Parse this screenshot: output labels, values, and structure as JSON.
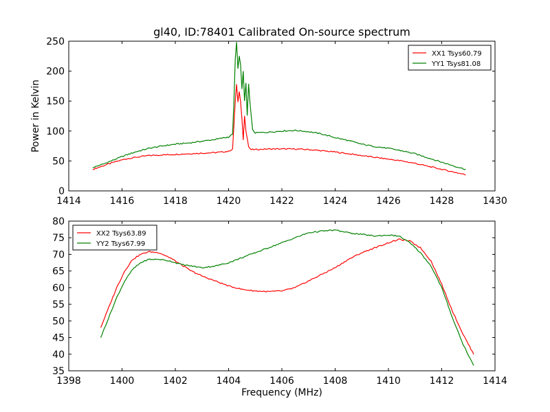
{
  "title": "gl40, ID:78401 Calibrated On-source spectrum",
  "chart_data": [
    {
      "type": "line",
      "title": "gl40, ID:78401 Calibrated On-source spectrum",
      "xlabel": "",
      "ylabel": "Power in Kelvin",
      "xlim": [
        1414,
        1430
      ],
      "ylim": [
        0,
        250
      ],
      "xticks": [
        "1414",
        "1416",
        "1418",
        "1420",
        "1422",
        "1424",
        "1426",
        "1428",
        "1430"
      ],
      "yticks": [
        "0",
        "50",
        "100",
        "150",
        "200",
        "250"
      ],
      "grid": false,
      "legend_position": "top-right",
      "series": [
        {
          "name": "XX1 Tsys60.79",
          "color": "#ff0000",
          "x": [
            1414.9,
            1415.3,
            1415.7,
            1416.1,
            1416.5,
            1417.0,
            1417.5,
            1418.0,
            1418.5,
            1419.0,
            1419.5,
            1420.0,
            1420.15,
            1420.25,
            1420.3,
            1420.35,
            1420.4,
            1420.45,
            1420.5,
            1420.55,
            1420.6,
            1420.65,
            1420.7,
            1420.75,
            1420.8,
            1420.85,
            1420.9,
            1421.0,
            1421.5,
            1422.0,
            1422.5,
            1423.0,
            1423.5,
            1424.0,
            1424.5,
            1425.0,
            1425.5,
            1426.0,
            1426.5,
            1427.0,
            1427.5,
            1428.0,
            1428.5,
            1428.9
          ],
          "y": [
            36,
            42,
            48,
            53,
            56,
            59,
            60,
            61,
            62,
            63,
            64,
            66,
            70,
            150,
            178,
            148,
            165,
            150,
            120,
            86,
            126,
            100,
            88,
            74,
            70,
            69,
            69,
            69,
            70,
            70,
            70,
            69,
            67,
            65,
            62,
            59,
            56,
            53,
            50,
            46,
            41,
            36,
            31,
            27
          ]
        },
        {
          "name": "YY1 Tsys81.08",
          "color": "#008000",
          "x": [
            1414.9,
            1415.3,
            1415.7,
            1416.1,
            1416.5,
            1417.0,
            1417.5,
            1418.0,
            1418.5,
            1419.0,
            1419.5,
            1420.0,
            1420.15,
            1420.2,
            1420.25,
            1420.3,
            1420.35,
            1420.4,
            1420.45,
            1420.5,
            1420.55,
            1420.6,
            1420.65,
            1420.7,
            1420.75,
            1420.8,
            1420.85,
            1420.9,
            1421.0,
            1421.5,
            1422.0,
            1422.5,
            1423.0,
            1423.5,
            1424.0,
            1424.5,
            1425.0,
            1425.5,
            1426.0,
            1426.5,
            1427.0,
            1427.5,
            1428.0,
            1428.5,
            1428.9
          ],
          "y": [
            39,
            45,
            52,
            59,
            65,
            71,
            75,
            78,
            80,
            83,
            86,
            90,
            95,
            150,
            220,
            248,
            205,
            225,
            210,
            170,
            200,
            150,
            180,
            125,
            178,
            150,
            125,
            102,
            97,
            98,
            100,
            101,
            99,
            95,
            89,
            84,
            78,
            74,
            71,
            67,
            62,
            55,
            48,
            41,
            36
          ]
        }
      ]
    },
    {
      "type": "line",
      "title": "",
      "xlabel": "Frequency (MHz)",
      "ylabel": "",
      "xlim": [
        1398,
        1414
      ],
      "ylim": [
        35,
        80
      ],
      "xticks": [
        "1398",
        "1400",
        "1402",
        "1404",
        "1406",
        "1408",
        "1410",
        "1412",
        "1414"
      ],
      "yticks": [
        "35",
        "40",
        "45",
        "50",
        "55",
        "60",
        "65",
        "70",
        "75",
        "80"
      ],
      "grid": false,
      "legend_position": "top-left",
      "series": [
        {
          "name": "XX2 Tsys63.89",
          "color": "#ff0000",
          "x": [
            1399.2,
            1399.5,
            1399.8,
            1400.1,
            1400.4,
            1400.7,
            1401.0,
            1401.4,
            1401.8,
            1402.2,
            1402.6,
            1403.0,
            1403.5,
            1404.0,
            1404.5,
            1405.0,
            1405.5,
            1406.0,
            1406.5,
            1407.0,
            1407.5,
            1408.0,
            1408.5,
            1409.0,
            1409.5,
            1410.0,
            1410.4,
            1410.8,
            1411.2,
            1411.6,
            1412.0,
            1412.4,
            1412.8,
            1413.2
          ],
          "y": [
            48,
            54,
            60,
            65,
            68.5,
            70,
            70.8,
            70.5,
            69,
            67,
            65,
            63.5,
            62,
            60.5,
            59.5,
            59,
            58.8,
            59,
            60,
            62,
            64,
            66,
            68.5,
            70.5,
            72,
            73.5,
            74.5,
            74,
            72,
            68,
            61,
            53,
            46,
            40
          ]
        },
        {
          "name": "YY2 Tsys67.99",
          "color": "#008000",
          "x": [
            1399.2,
            1399.5,
            1399.8,
            1400.1,
            1400.4,
            1400.7,
            1401.0,
            1401.4,
            1401.8,
            1402.2,
            1402.6,
            1403.0,
            1403.5,
            1404.0,
            1404.5,
            1405.0,
            1405.5,
            1406.0,
            1406.5,
            1407.0,
            1407.5,
            1408.0,
            1408.5,
            1409.0,
            1409.5,
            1410.0,
            1410.4,
            1410.8,
            1411.2,
            1411.6,
            1412.0,
            1412.4,
            1412.8,
            1413.2
          ],
          "y": [
            45,
            51,
            57,
            62,
            65.5,
            67.5,
            68.5,
            68.5,
            68,
            67,
            66.5,
            66,
            66.5,
            67.5,
            69,
            70.5,
            72,
            73.5,
            75,
            76.5,
            77,
            77.3,
            76.5,
            76,
            75.5,
            75.8,
            75.5,
            73.5,
            70.5,
            66.5,
            60,
            51,
            43,
            36.5
          ]
        }
      ]
    }
  ]
}
